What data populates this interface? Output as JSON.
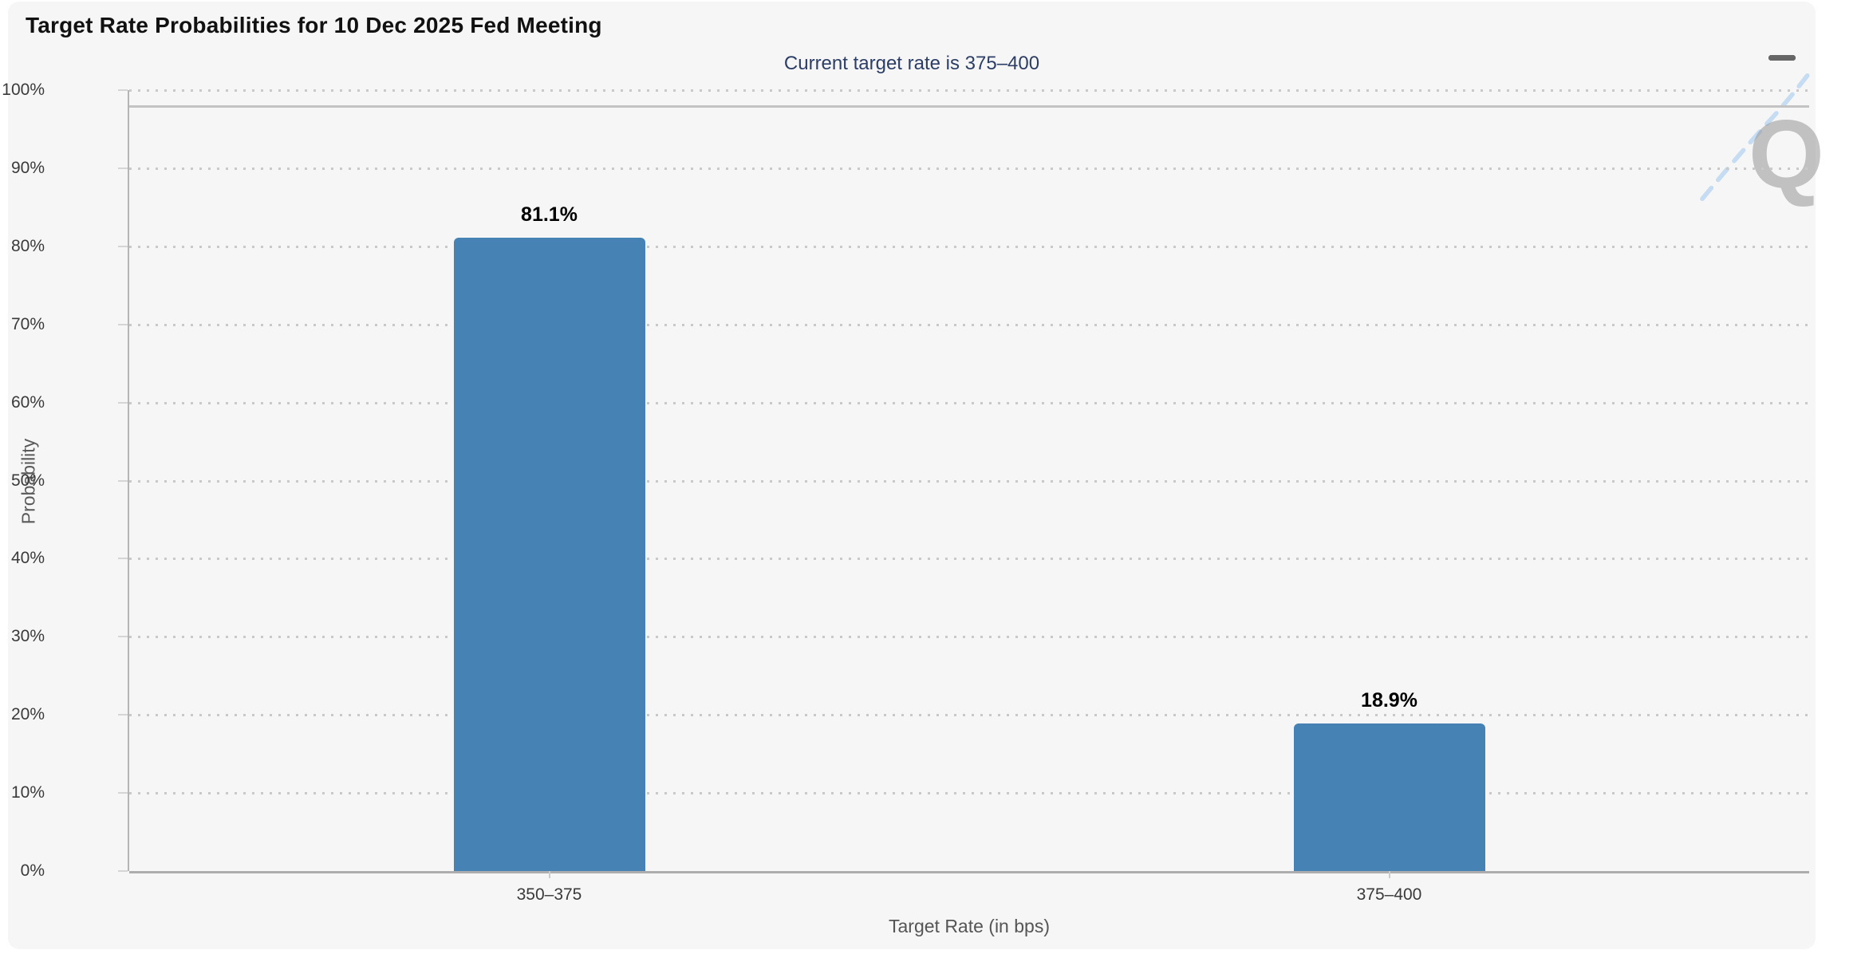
{
  "chart": {
    "title": "Target Rate Probabilities for 10 Dec 2025 Fed Meeting",
    "subtitle": "Current target rate is 375–400",
    "export_menu": {
      "icon": "hamburger-icon"
    },
    "watermark": {
      "letter": "Q",
      "icon": "quikstrike-watermark"
    },
    "colors": {
      "bar": "#4682b4",
      "subtitle_text": "#2c3e66",
      "card_background": "#f6f6f6",
      "axis_label_text": "#3a3a3a",
      "axis_title_text": "#555555",
      "grid_dots": "#c9c9c9",
      "watermark_gray": "#969696",
      "watermark_blue": "#b9d6f1"
    }
  },
  "chart_data": {
    "type": "bar",
    "title": "Target Rate Probabilities for 10 Dec 2025 Fed Meeting",
    "subtitle": "Current target rate is 375–400",
    "categories": [
      "350–375",
      "375–400"
    ],
    "values": [
      81.1,
      18.9
    ],
    "value_labels": [
      "81.1%",
      "18.9%"
    ],
    "xlabel": "Target Rate (in bps)",
    "ylabel": "Probability",
    "ylim": [
      0,
      100
    ],
    "ytick_step": 10,
    "ytick_labels": [
      "0%",
      "10%",
      "20%",
      "30%",
      "40%",
      "50%",
      "60%",
      "70%",
      "80%",
      "90%",
      "100%"
    ],
    "grid": "horizontal dotted lines, y-axis left, solid plot line near 98%",
    "plotline_y": 98,
    "legend_position": "none"
  }
}
